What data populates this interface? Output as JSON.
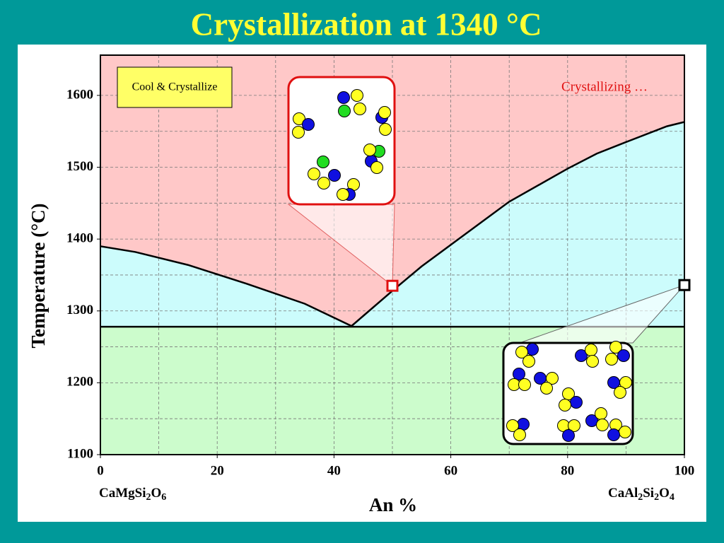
{
  "chart_data": {
    "type": "phase",
    "title": "Crystallization at 1340 °C",
    "xlabel": "An %",
    "ylabel": "Temperature (°C)",
    "left_formula": [
      "CaMgSi",
      "2",
      "O",
      "6"
    ],
    "right_formula": [
      "CaAl",
      "2",
      "Si",
      "2",
      "O",
      "4"
    ],
    "button": "Cool & Crystallize",
    "annotation": "Crystallizing …",
    "xlim": [
      0,
      100
    ],
    "ylim": [
      1100,
      1656
    ],
    "xticks": [
      0,
      20,
      40,
      60,
      80,
      100
    ],
    "yticks": [
      1100,
      1200,
      1300,
      1400,
      1500,
      1600
    ],
    "xgrid": [
      10,
      20,
      30,
      40,
      50,
      60,
      70,
      80,
      90
    ],
    "ygrid": [
      1150,
      1200,
      1250,
      1300,
      1350,
      1400,
      1450,
      1500,
      1550,
      1600
    ],
    "grid": true,
    "series": [
      {
        "color": "#000000",
        "x": [
          0,
          6,
          15,
          25,
          35,
          43,
          45,
          50,
          55,
          60,
          65,
          70,
          80,
          85,
          90,
          97,
          100
        ],
        "values": [
          1390,
          1382,
          1364,
          1338,
          1310,
          1279,
          1293,
          1328,
          1362,
          1392,
          1422,
          1452,
          1498,
          1519,
          1535,
          1557,
          1563
        ]
      },
      {
        "color": "#000000",
        "x": [
          0,
          100
        ],
        "values": [
          1278,
          1278
        ]
      }
    ],
    "fills": [
      "#ffc8c8",
      "#ccfcfc",
      "#ccfccc"
    ],
    "markers": [
      {
        "x": 50,
        "y": 1335,
        "color": "#e01010"
      },
      {
        "x": 100,
        "y": 1336,
        "color": "#000000"
      }
    ]
  }
}
